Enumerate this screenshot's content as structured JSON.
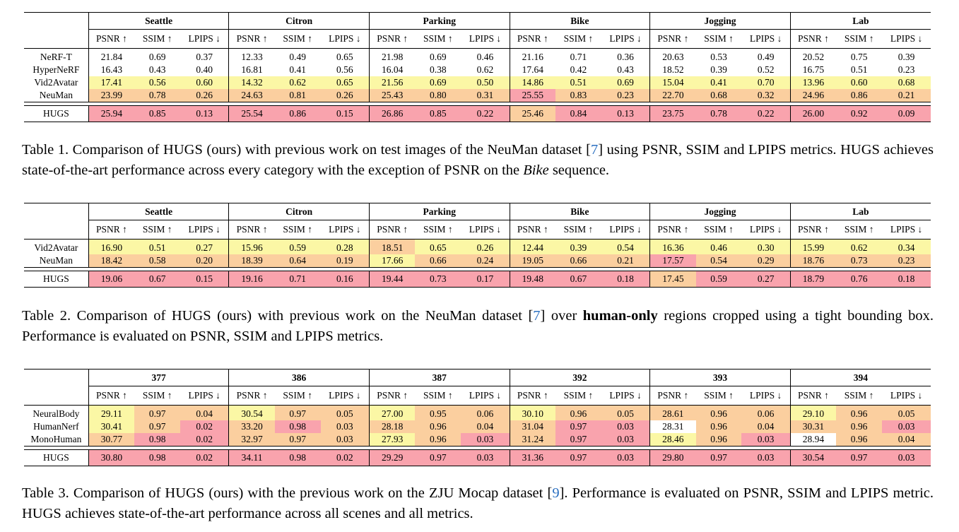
{
  "tables": [
    {
      "groups": [
        "Seattle",
        "Citron",
        "Parking",
        "Bike",
        "Jogging",
        "Lab"
      ],
      "metrics": [
        "PSNR ↑",
        "SSIM ↑",
        "LPIPS ↓"
      ],
      "rows": [
        {
          "name": "NeRF-T",
          "cells": [
            {
              "v": "21.84",
              "c": "w"
            },
            {
              "v": "0.69",
              "c": "w"
            },
            {
              "v": "0.37",
              "c": "w"
            },
            {
              "v": "12.33",
              "c": "w"
            },
            {
              "v": "0.49",
              "c": "w"
            },
            {
              "v": "0.65",
              "c": "w"
            },
            {
              "v": "21.98",
              "c": "w"
            },
            {
              "v": "0.69",
              "c": "w"
            },
            {
              "v": "0.46",
              "c": "w"
            },
            {
              "v": "21.16",
              "c": "w"
            },
            {
              "v": "0.71",
              "c": "w"
            },
            {
              "v": "0.36",
              "c": "w"
            },
            {
              "v": "20.63",
              "c": "w"
            },
            {
              "v": "0.53",
              "c": "w"
            },
            {
              "v": "0.49",
              "c": "w"
            },
            {
              "v": "20.52",
              "c": "w"
            },
            {
              "v": "0.75",
              "c": "w"
            },
            {
              "v": "0.39",
              "c": "w"
            }
          ]
        },
        {
          "name": "HyperNeRF",
          "cells": [
            {
              "v": "16.43",
              "c": "w"
            },
            {
              "v": "0.43",
              "c": "w"
            },
            {
              "v": "0.40",
              "c": "w"
            },
            {
              "v": "16.81",
              "c": "w"
            },
            {
              "v": "0.41",
              "c": "w"
            },
            {
              "v": "0.56",
              "c": "w"
            },
            {
              "v": "16.04",
              "c": "w"
            },
            {
              "v": "0.38",
              "c": "w"
            },
            {
              "v": "0.62",
              "c": "w"
            },
            {
              "v": "17.64",
              "c": "w"
            },
            {
              "v": "0.42",
              "c": "w"
            },
            {
              "v": "0.43",
              "c": "w"
            },
            {
              "v": "18.52",
              "c": "w"
            },
            {
              "v": "0.39",
              "c": "w"
            },
            {
              "v": "0.52",
              "c": "w"
            },
            {
              "v": "16.75",
              "c": "w"
            },
            {
              "v": "0.51",
              "c": "w"
            },
            {
              "v": "0.23",
              "c": "w"
            }
          ]
        },
        {
          "name": "Vid2Avatar",
          "cells": [
            {
              "v": "17.41",
              "c": "y"
            },
            {
              "v": "0.56",
              "c": "y"
            },
            {
              "v": "0.60",
              "c": "y"
            },
            {
              "v": "14.32",
              "c": "y"
            },
            {
              "v": "0.62",
              "c": "y"
            },
            {
              "v": "0.65",
              "c": "y"
            },
            {
              "v": "21.56",
              "c": "y"
            },
            {
              "v": "0.69",
              "c": "y"
            },
            {
              "v": "0.50",
              "c": "y"
            },
            {
              "v": "14.86",
              "c": "y"
            },
            {
              "v": "0.51",
              "c": "y"
            },
            {
              "v": "0.69",
              "c": "y"
            },
            {
              "v": "15.04",
              "c": "y"
            },
            {
              "v": "0.41",
              "c": "y"
            },
            {
              "v": "0.70",
              "c": "y"
            },
            {
              "v": "13.96",
              "c": "y"
            },
            {
              "v": "0.60",
              "c": "y"
            },
            {
              "v": "0.68",
              "c": "y"
            }
          ]
        },
        {
          "name": "NeuMan",
          "cells": [
            {
              "v": "23.99",
              "c": "o"
            },
            {
              "v": "0.78",
              "c": "o"
            },
            {
              "v": "0.26",
              "c": "o"
            },
            {
              "v": "24.63",
              "c": "o"
            },
            {
              "v": "0.81",
              "c": "o"
            },
            {
              "v": "0.26",
              "c": "o"
            },
            {
              "v": "25.43",
              "c": "o"
            },
            {
              "v": "0.80",
              "c": "o"
            },
            {
              "v": "0.31",
              "c": "o"
            },
            {
              "v": "25.55",
              "c": "r"
            },
            {
              "v": "0.83",
              "c": "o"
            },
            {
              "v": "0.23",
              "c": "o"
            },
            {
              "v": "22.70",
              "c": "o"
            },
            {
              "v": "0.68",
              "c": "o"
            },
            {
              "v": "0.32",
              "c": "o"
            },
            {
              "v": "24.96",
              "c": "o"
            },
            {
              "v": "0.86",
              "c": "o"
            },
            {
              "v": "0.21",
              "c": "o"
            }
          ]
        }
      ],
      "ours": {
        "name": "HUGS",
        "cells": [
          {
            "v": "25.94",
            "c": "r"
          },
          {
            "v": "0.85",
            "c": "r"
          },
          {
            "v": "0.13",
            "c": "r"
          },
          {
            "v": "25.54",
            "c": "r"
          },
          {
            "v": "0.86",
            "c": "r"
          },
          {
            "v": "0.15",
            "c": "r"
          },
          {
            "v": "26.86",
            "c": "r"
          },
          {
            "v": "0.85",
            "c": "r"
          },
          {
            "v": "0.22",
            "c": "r"
          },
          {
            "v": "25.46",
            "c": "o"
          },
          {
            "v": "0.84",
            "c": "r"
          },
          {
            "v": "0.13",
            "c": "r"
          },
          {
            "v": "23.75",
            "c": "r"
          },
          {
            "v": "0.78",
            "c": "r"
          },
          {
            "v": "0.22",
            "c": "r"
          },
          {
            "v": "26.00",
            "c": "r"
          },
          {
            "v": "0.92",
            "c": "r"
          },
          {
            "v": "0.09",
            "c": "r"
          }
        ]
      },
      "caption": {
        "pre": "Table 1. Comparison of HUGS (ours) with previous work on test images of the NeuMan dataset [",
        "ref": "7",
        "mid": "] using PSNR, SSIM and LPIPS metrics. HUGS achieves state-of-the-art performance across every category with the exception of PSNR on the ",
        "em": "Bike",
        "post": " sequence."
      }
    },
    {
      "groups": [
        "Seattle",
        "Citron",
        "Parking",
        "Bike",
        "Jogging",
        "Lab"
      ],
      "metrics": [
        "PSNR ↑",
        "SSIM ↑",
        "LPIPS ↓"
      ],
      "rows": [
        {
          "name": "Vid2Avatar",
          "cells": [
            {
              "v": "16.90",
              "c": "y"
            },
            {
              "v": "0.51",
              "c": "y"
            },
            {
              "v": "0.27",
              "c": "y"
            },
            {
              "v": "15.96",
              "c": "y"
            },
            {
              "v": "0.59",
              "c": "y"
            },
            {
              "v": "0.28",
              "c": "y"
            },
            {
              "v": "18.51",
              "c": "o"
            },
            {
              "v": "0.65",
              "c": "y"
            },
            {
              "v": "0.26",
              "c": "y"
            },
            {
              "v": "12.44",
              "c": "y"
            },
            {
              "v": "0.39",
              "c": "y"
            },
            {
              "v": "0.54",
              "c": "y"
            },
            {
              "v": "16.36",
              "c": "y"
            },
            {
              "v": "0.46",
              "c": "y"
            },
            {
              "v": "0.30",
              "c": "y"
            },
            {
              "v": "15.99",
              "c": "y"
            },
            {
              "v": "0.62",
              "c": "y"
            },
            {
              "v": "0.34",
              "c": "y"
            }
          ]
        },
        {
          "name": "NeuMan",
          "cells": [
            {
              "v": "18.42",
              "c": "o"
            },
            {
              "v": "0.58",
              "c": "o"
            },
            {
              "v": "0.20",
              "c": "o"
            },
            {
              "v": "18.39",
              "c": "o"
            },
            {
              "v": "0.64",
              "c": "o"
            },
            {
              "v": "0.19",
              "c": "o"
            },
            {
              "v": "17.66",
              "c": "y"
            },
            {
              "v": "0.66",
              "c": "o"
            },
            {
              "v": "0.24",
              "c": "o"
            },
            {
              "v": "19.05",
              "c": "o"
            },
            {
              "v": "0.66",
              "c": "o"
            },
            {
              "v": "0.21",
              "c": "o"
            },
            {
              "v": "17.57",
              "c": "r"
            },
            {
              "v": "0.54",
              "c": "o"
            },
            {
              "v": "0.29",
              "c": "o"
            },
            {
              "v": "18.76",
              "c": "o"
            },
            {
              "v": "0.73",
              "c": "o"
            },
            {
              "v": "0.23",
              "c": "o"
            }
          ]
        }
      ],
      "ours": {
        "name": "HUGS",
        "cells": [
          {
            "v": "19.06",
            "c": "r"
          },
          {
            "v": "0.67",
            "c": "r"
          },
          {
            "v": "0.15",
            "c": "r"
          },
          {
            "v": "19.16",
            "c": "r"
          },
          {
            "v": "0.71",
            "c": "r"
          },
          {
            "v": "0.16",
            "c": "r"
          },
          {
            "v": "19.44",
            "c": "r"
          },
          {
            "v": "0.73",
            "c": "r"
          },
          {
            "v": "0.17",
            "c": "r"
          },
          {
            "v": "19.48",
            "c": "r"
          },
          {
            "v": "0.67",
            "c": "r"
          },
          {
            "v": "0.18",
            "c": "r"
          },
          {
            "v": "17.45",
            "c": "o"
          },
          {
            "v": "0.59",
            "c": "r"
          },
          {
            "v": "0.27",
            "c": "r"
          },
          {
            "v": "18.79",
            "c": "r"
          },
          {
            "v": "0.76",
            "c": "r"
          },
          {
            "v": "0.18",
            "c": "r"
          }
        ]
      },
      "caption": {
        "pre": "Table 2.  Comparison of HUGS (ours) with previous work on the NeuMan dataset [",
        "ref": "7",
        "mid": "] over ",
        "strong": "human-only",
        "post": " regions cropped using a tight bounding box. Performance is evaluated on PSNR, SSIM and LPIPS metrics."
      }
    },
    {
      "groups": [
        "377",
        "386",
        "387",
        "392",
        "393",
        "394"
      ],
      "metrics": [
        "PSNR ↑",
        "SSIM ↑",
        "LPIPS ↓"
      ],
      "rows": [
        {
          "name": "NeuralBody",
          "cells": [
            {
              "v": "29.11",
              "c": "y"
            },
            {
              "v": "0.97",
              "c": "o"
            },
            {
              "v": "0.04",
              "c": "o"
            },
            {
              "v": "30.54",
              "c": "y"
            },
            {
              "v": "0.97",
              "c": "o"
            },
            {
              "v": "0.05",
              "c": "o"
            },
            {
              "v": "27.00",
              "c": "y"
            },
            {
              "v": "0.95",
              "c": "o"
            },
            {
              "v": "0.06",
              "c": "o"
            },
            {
              "v": "30.10",
              "c": "y"
            },
            {
              "v": "0.96",
              "c": "o"
            },
            {
              "v": "0.05",
              "c": "o"
            },
            {
              "v": "28.61",
              "c": "o"
            },
            {
              "v": "0.96",
              "c": "o"
            },
            {
              "v": "0.06",
              "c": "o"
            },
            {
              "v": "29.10",
              "c": "y"
            },
            {
              "v": "0.96",
              "c": "o"
            },
            {
              "v": "0.05",
              "c": "o"
            }
          ]
        },
        {
          "name": "HumanNerf",
          "cells": [
            {
              "v": "30.41",
              "c": "y"
            },
            {
              "v": "0.97",
              "c": "o"
            },
            {
              "v": "0.02",
              "c": "r"
            },
            {
              "v": "33.20",
              "c": "o"
            },
            {
              "v": "0.98",
              "c": "r"
            },
            {
              "v": "0.03",
              "c": "o"
            },
            {
              "v": "28.18",
              "c": "o"
            },
            {
              "v": "0.96",
              "c": "o"
            },
            {
              "v": "0.04",
              "c": "o"
            },
            {
              "v": "31.04",
              "c": "o"
            },
            {
              "v": "0.97",
              "c": "r"
            },
            {
              "v": "0.03",
              "c": "r"
            },
            {
              "v": "28.31",
              "c": "w"
            },
            {
              "v": "0.96",
              "c": "o"
            },
            {
              "v": "0.04",
              "c": "o"
            },
            {
              "v": "30.31",
              "c": "o"
            },
            {
              "v": "0.96",
              "c": "o"
            },
            {
              "v": "0.03",
              "c": "r"
            }
          ]
        },
        {
          "name": "MonoHuman",
          "cells": [
            {
              "v": "30.77",
              "c": "o"
            },
            {
              "v": "0.98",
              "c": "r"
            },
            {
              "v": "0.02",
              "c": "r"
            },
            {
              "v": "32.97",
              "c": "o"
            },
            {
              "v": "0.97",
              "c": "o"
            },
            {
              "v": "0.03",
              "c": "o"
            },
            {
              "v": "27.93",
              "c": "y"
            },
            {
              "v": "0.96",
              "c": "o"
            },
            {
              "v": "0.03",
              "c": "r"
            },
            {
              "v": "31.24",
              "c": "o"
            },
            {
              "v": "0.97",
              "c": "r"
            },
            {
              "v": "0.03",
              "c": "r"
            },
            {
              "v": "28.46",
              "c": "y"
            },
            {
              "v": "0.96",
              "c": "o"
            },
            {
              "v": "0.03",
              "c": "r"
            },
            {
              "v": "28.94",
              "c": "w"
            },
            {
              "v": "0.96",
              "c": "o"
            },
            {
              "v": "0.04",
              "c": "o"
            }
          ]
        }
      ],
      "ours": {
        "name": "HUGS",
        "cells": [
          {
            "v": "30.80",
            "c": "r"
          },
          {
            "v": "0.98",
            "c": "r"
          },
          {
            "v": "0.02",
            "c": "r"
          },
          {
            "v": "34.11",
            "c": "r"
          },
          {
            "v": "0.98",
            "c": "r"
          },
          {
            "v": "0.02",
            "c": "r"
          },
          {
            "v": "29.29",
            "c": "r"
          },
          {
            "v": "0.97",
            "c": "r"
          },
          {
            "v": "0.03",
            "c": "r"
          },
          {
            "v": "31.36",
            "c": "r"
          },
          {
            "v": "0.97",
            "c": "r"
          },
          {
            "v": "0.03",
            "c": "r"
          },
          {
            "v": "29.80",
            "c": "r"
          },
          {
            "v": "0.97",
            "c": "r"
          },
          {
            "v": "0.03",
            "c": "r"
          },
          {
            "v": "30.54",
            "c": "r"
          },
          {
            "v": "0.97",
            "c": "r"
          },
          {
            "v": "0.03",
            "c": "r"
          }
        ]
      },
      "caption": {
        "pre": "Table 3. Comparison of HUGS (ours) with the previous work on the ZJU Mocap dataset [",
        "ref": "9",
        "mid": "]. Performance is evaluated on PSNR, SSIM and LPIPS metric. HUGS achieves state-of-the-art performance across all scenes and all metrics.",
        "post": ""
      }
    }
  ]
}
